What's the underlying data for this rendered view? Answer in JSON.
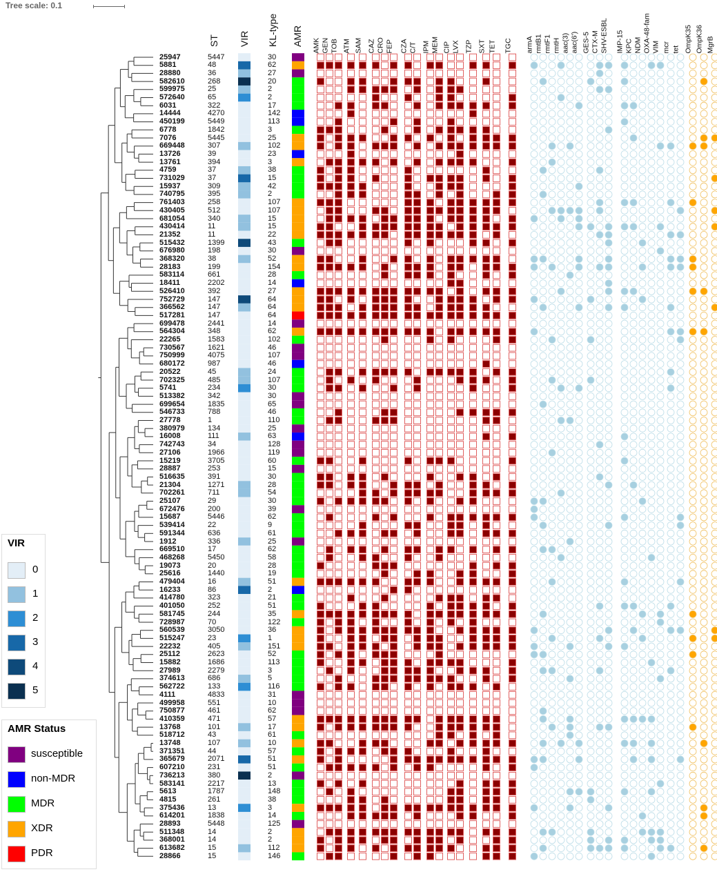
{
  "tree_scale": {
    "label": "Tree scale: 0.1"
  },
  "headers": {
    "st": "ST",
    "vir": "VIR",
    "kl": "KL-type",
    "amr": "AMR"
  },
  "drug_columns": [
    "AMK",
    "GEN",
    "TOB",
    "ATM",
    "SAM",
    "CAZ",
    "CRO",
    "FEP",
    "CZA",
    "C/T",
    "IPM",
    "MEM",
    "CIP",
    "LVX",
    "TZP",
    "SXT",
    "TET",
    "TGC"
  ],
  "gene_columns": [
    "armA",
    "rmtB1",
    "rmtF1",
    "rmtH",
    "aac(3)",
    "aac(6')",
    "GES-5",
    "CTX-M",
    "SHV-ESBL",
    "IMP-15",
    "KPC",
    "NDM",
    "OXA-48-fam",
    "VIM",
    "mcr",
    "tet",
    "OmpK35",
    "OmpK36",
    "MgrB"
  ],
  "vir_legend": {
    "title": "VIR",
    "items": [
      {
        "label": "0",
        "color": "#e3eef7"
      },
      {
        "label": "1",
        "color": "#92c1df"
      },
      {
        "label": "2",
        "color": "#2e8ed4"
      },
      {
        "label": "3",
        "color": "#1768a8"
      },
      {
        "label": "4",
        "color": "#0e4a7a"
      },
      {
        "label": "5",
        "color": "#0b3050"
      }
    ]
  },
  "amr_legend": {
    "title": "AMR Status",
    "items": [
      {
        "label": "susceptible",
        "color": "#800080"
      },
      {
        "label": "non-MDR",
        "color": "#0000ff"
      },
      {
        "label": "MDR",
        "color": "#00ff00"
      },
      {
        "label": "XDR",
        "color": "#ffa500"
      },
      {
        "label": "PDR",
        "color": "#ff0000"
      }
    ]
  },
  "colors": {
    "drug_on": "#8b0000",
    "drug_off_border": "#e06060",
    "gene_on": "#a8d0e0",
    "gene_off": "#bcdde8",
    "omp_on": "#ffa500",
    "omp_off": "#f0c060"
  },
  "isolates": [
    {
      "id": "25947",
      "st": "5447",
      "kl": "30",
      "vir": 0,
      "amr": "susceptible"
    },
    {
      "id": "5881",
      "st": "48",
      "kl": "62",
      "vir": 3,
      "amr": "XDR"
    },
    {
      "id": "28880",
      "st": "36",
      "kl": "27",
      "vir": 1,
      "amr": "susceptible"
    },
    {
      "id": "582610",
      "st": "268",
      "kl": "20",
      "vir": 5,
      "amr": "MDR"
    },
    {
      "id": "599975",
      "st": "25",
      "kl": "2",
      "vir": 1,
      "amr": "MDR"
    },
    {
      "id": "572640",
      "st": "65",
      "kl": "2",
      "vir": 2,
      "amr": "MDR"
    },
    {
      "id": "6031",
      "st": "322",
      "kl": "17",
      "vir": 0,
      "amr": "MDR"
    },
    {
      "id": "14444",
      "st": "4270",
      "kl": "142",
      "vir": 0,
      "amr": "non-MDR"
    },
    {
      "id": "450199",
      "st": "5449",
      "kl": "113",
      "vir": 0,
      "amr": "non-MDR"
    },
    {
      "id": "6778",
      "st": "1842",
      "kl": "3",
      "vir": 0,
      "amr": "MDR"
    },
    {
      "id": "7076",
      "st": "5445",
      "kl": "25",
      "vir": 0,
      "amr": "XDR"
    },
    {
      "id": "669448",
      "st": "307",
      "kl": "102",
      "vir": 1,
      "amr": "XDR"
    },
    {
      "id": "13726",
      "st": "39",
      "kl": "23",
      "vir": 0,
      "amr": "non-MDR"
    },
    {
      "id": "13761",
      "st": "394",
      "kl": "3",
      "vir": 0,
      "amr": "XDR"
    },
    {
      "id": "4759",
      "st": "37",
      "kl": "38",
      "vir": 1,
      "amr": "MDR"
    },
    {
      "id": "731029",
      "st": "37",
      "kl": "15",
      "vir": 3,
      "amr": "MDR"
    },
    {
      "id": "15937",
      "st": "309",
      "kl": "42",
      "vir": 1,
      "amr": "MDR"
    },
    {
      "id": "740795",
      "st": "395",
      "kl": "2",
      "vir": 1,
      "amr": "MDR"
    },
    {
      "id": "761403",
      "st": "258",
      "kl": "107",
      "vir": 0,
      "amr": "XDR"
    },
    {
      "id": "430405",
      "st": "512",
      "kl": "107",
      "vir": 0,
      "amr": "XDR"
    },
    {
      "id": "681054",
      "st": "340",
      "kl": "15",
      "vir": 1,
      "amr": "XDR"
    },
    {
      "id": "430414",
      "st": "11",
      "kl": "15",
      "vir": 1,
      "amr": "XDR"
    },
    {
      "id": "21352",
      "st": "11",
      "kl": "22",
      "vir": 0,
      "amr": "XDR"
    },
    {
      "id": "515432",
      "st": "1399",
      "kl": "43",
      "vir": 4,
      "amr": "MDR"
    },
    {
      "id": "676980",
      "st": "198",
      "kl": "30",
      "vir": 0,
      "amr": "susceptible"
    },
    {
      "id": "368320",
      "st": "38",
      "kl": "52",
      "vir": 1,
      "amr": "XDR"
    },
    {
      "id": "28183",
      "st": "199",
      "kl": "154",
      "vir": 0,
      "amr": "XDR"
    },
    {
      "id": "583114",
      "st": "661",
      "kl": "28",
      "vir": 0,
      "amr": "MDR"
    },
    {
      "id": "18411",
      "st": "2202",
      "kl": "14",
      "vir": 0,
      "amr": "non-MDR"
    },
    {
      "id": "526410",
      "st": "392",
      "kl": "27",
      "vir": 0,
      "amr": "XDR"
    },
    {
      "id": "752729",
      "st": "147",
      "kl": "64",
      "vir": 4,
      "amr": "XDR"
    },
    {
      "id": "366562",
      "st": "147",
      "kl": "64",
      "vir": 1,
      "amr": "XDR"
    },
    {
      "id": "517281",
      "st": "147",
      "kl": "64",
      "vir": 0,
      "amr": "PDR"
    },
    {
      "id": "699478",
      "st": "2441",
      "kl": "14",
      "vir": 0,
      "amr": "susceptible"
    },
    {
      "id": "564304",
      "st": "348",
      "kl": "62",
      "vir": 0,
      "amr": "XDR"
    },
    {
      "id": "22265",
      "st": "1583",
      "kl": "102",
      "vir": 0,
      "amr": "MDR"
    },
    {
      "id": "730567",
      "st": "1621",
      "kl": "46",
      "vir": 0,
      "amr": "susceptible"
    },
    {
      "id": "750999",
      "st": "4075",
      "kl": "107",
      "vir": 0,
      "amr": "susceptible"
    },
    {
      "id": "680172",
      "st": "987",
      "kl": "46",
      "vir": 0,
      "amr": "non-MDR"
    },
    {
      "id": "20522",
      "st": "45",
      "kl": "24",
      "vir": 1,
      "amr": "MDR"
    },
    {
      "id": "702325",
      "st": "485",
      "kl": "107",
      "vir": 1,
      "amr": "MDR"
    },
    {
      "id": "5741",
      "st": "234",
      "kl": "30",
      "vir": 2,
      "amr": "MDR"
    },
    {
      "id": "513382",
      "st": "342",
      "kl": "30",
      "vir": 0,
      "amr": "susceptible"
    },
    {
      "id": "699654",
      "st": "1835",
      "kl": "65",
      "vir": 0,
      "amr": "susceptible"
    },
    {
      "id": "546733",
      "st": "788",
      "kl": "46",
      "vir": 0,
      "amr": "MDR"
    },
    {
      "id": "27778",
      "st": "1",
      "kl": "110",
      "vir": 0,
      "amr": "MDR"
    },
    {
      "id": "380979",
      "st": "134",
      "kl": "25",
      "vir": 0,
      "amr": "susceptible"
    },
    {
      "id": "16008",
      "st": "111",
      "kl": "63",
      "vir": 1,
      "amr": "non-MDR"
    },
    {
      "id": "742743",
      "st": "34",
      "kl": "128",
      "vir": 0,
      "amr": "susceptible"
    },
    {
      "id": "27106",
      "st": "1966",
      "kl": "119",
      "vir": 0,
      "amr": "susceptible"
    },
    {
      "id": "15219",
      "st": "3705",
      "kl": "60",
      "vir": 0,
      "amr": "MDR"
    },
    {
      "id": "28887",
      "st": "253",
      "kl": "15",
      "vir": 0,
      "amr": "susceptible"
    },
    {
      "id": "516635",
      "st": "391",
      "kl": "30",
      "vir": 0,
      "amr": "MDR"
    },
    {
      "id": "21304",
      "st": "1271",
      "kl": "28",
      "vir": 1,
      "amr": "MDR"
    },
    {
      "id": "702261",
      "st": "711",
      "kl": "54",
      "vir": 1,
      "amr": "MDR"
    },
    {
      "id": "25107",
      "st": "29",
      "kl": "30",
      "vir": 0,
      "amr": "MDR"
    },
    {
      "id": "672476",
      "st": "200",
      "kl": "39",
      "vir": 0,
      "amr": "susceptible"
    },
    {
      "id": "15687",
      "st": "5446",
      "kl": "62",
      "vir": 0,
      "amr": "MDR"
    },
    {
      "id": "539414",
      "st": "22",
      "kl": "9",
      "vir": 0,
      "amr": "MDR"
    },
    {
      "id": "591344",
      "st": "636",
      "kl": "61",
      "vir": 0,
      "amr": "MDR"
    },
    {
      "id": "1912",
      "st": "336",
      "kl": "25",
      "vir": 1,
      "amr": "susceptible"
    },
    {
      "id": "669510",
      "st": "17",
      "kl": "62",
      "vir": 0,
      "amr": "MDR"
    },
    {
      "id": "468268",
      "st": "5450",
      "kl": "58",
      "vir": 0,
      "amr": "MDR"
    },
    {
      "id": "19073",
      "st": "20",
      "kl": "28",
      "vir": 0,
      "amr": "MDR"
    },
    {
      "id": "25616",
      "st": "1440",
      "kl": "19",
      "vir": 0,
      "amr": "MDR"
    },
    {
      "id": "479404",
      "st": "16",
      "kl": "51",
      "vir": 1,
      "amr": "XDR"
    },
    {
      "id": "16233",
      "st": "86",
      "kl": "2",
      "vir": 3,
      "amr": "non-MDR"
    },
    {
      "id": "414780",
      "st": "323",
      "kl": "21",
      "vir": 0,
      "amr": "MDR"
    },
    {
      "id": "401050",
      "st": "252",
      "kl": "51",
      "vir": 0,
      "amr": "MDR"
    },
    {
      "id": "581745",
      "st": "244",
      "kl": "35",
      "vir": 0,
      "amr": "XDR"
    },
    {
      "id": "728987",
      "st": "70",
      "kl": "122",
      "vir": 0,
      "amr": "MDR"
    },
    {
      "id": "560539",
      "st": "3050",
      "kl": "36",
      "vir": 0,
      "amr": "XDR"
    },
    {
      "id": "515247",
      "st": "23",
      "kl": "1",
      "vir": 2,
      "amr": "XDR"
    },
    {
      "id": "22232",
      "st": "405",
      "kl": "151",
      "vir": 1,
      "amr": "XDR"
    },
    {
      "id": "25112",
      "st": "2623",
      "kl": "52",
      "vir": 0,
      "amr": "MDR"
    },
    {
      "id": "15882",
      "st": "1686",
      "kl": "113",
      "vir": 0,
      "amr": "MDR"
    },
    {
      "id": "27989",
      "st": "2279",
      "kl": "3",
      "vir": 0,
      "amr": "MDR"
    },
    {
      "id": "374613",
      "st": "686",
      "kl": "5",
      "vir": 1,
      "amr": "MDR"
    },
    {
      "id": "562722",
      "st": "133",
      "kl": "116",
      "vir": 2,
      "amr": "MDR"
    },
    {
      "id": "4111",
      "st": "4833",
      "kl": "31",
      "vir": 0,
      "amr": "susceptible"
    },
    {
      "id": "499958",
      "st": "551",
      "kl": "10",
      "vir": 0,
      "amr": "susceptible"
    },
    {
      "id": "750877",
      "st": "461",
      "kl": "62",
      "vir": 0,
      "amr": "susceptible"
    },
    {
      "id": "410359",
      "st": "471",
      "kl": "57",
      "vir": 0,
      "amr": "XDR"
    },
    {
      "id": "13768",
      "st": "101",
      "kl": "17",
      "vir": 1,
      "amr": "XDR"
    },
    {
      "id": "518712",
      "st": "43",
      "kl": "61",
      "vir": 0,
      "amr": "MDR"
    },
    {
      "id": "13748",
      "st": "107",
      "kl": "10",
      "vir": 1,
      "amr": "XDR"
    },
    {
      "id": "371351",
      "st": "44",
      "kl": "57",
      "vir": 0,
      "amr": "MDR"
    },
    {
      "id": "365679",
      "st": "2071",
      "kl": "51",
      "vir": 3,
      "amr": "XDR"
    },
    {
      "id": "607210",
      "st": "231",
      "kl": "51",
      "vir": 0,
      "amr": "MDR"
    },
    {
      "id": "736213",
      "st": "380",
      "kl": "2",
      "vir": 5,
      "amr": "susceptible"
    },
    {
      "id": "583141",
      "st": "2217",
      "kl": "13",
      "vir": 0,
      "amr": "MDR"
    },
    {
      "id": "5613",
      "st": "1787",
      "kl": "148",
      "vir": 0,
      "amr": "MDR"
    },
    {
      "id": "4815",
      "st": "261",
      "kl": "38",
      "vir": 0,
      "amr": "MDR"
    },
    {
      "id": "375436",
      "st": "13",
      "kl": "3",
      "vir": 2,
      "amr": "XDR"
    },
    {
      "id": "614201",
      "st": "1838",
      "kl": "14",
      "vir": 0,
      "amr": "MDR"
    },
    {
      "id": "28893",
      "st": "5448",
      "kl": "125",
      "vir": 0,
      "amr": "susceptible"
    },
    {
      "id": "511348",
      "st": "14",
      "kl": "2",
      "vir": 0,
      "amr": "XDR"
    },
    {
      "id": "368001",
      "st": "14",
      "kl": "2",
      "vir": 0,
      "amr": "XDR"
    },
    {
      "id": "613682",
      "st": "15",
      "kl": "112",
      "vir": 1,
      "amr": "XDR"
    },
    {
      "id": "28866",
      "st": "15",
      "kl": "146",
      "vir": 0,
      "amr": "MDR"
    }
  ]
}
